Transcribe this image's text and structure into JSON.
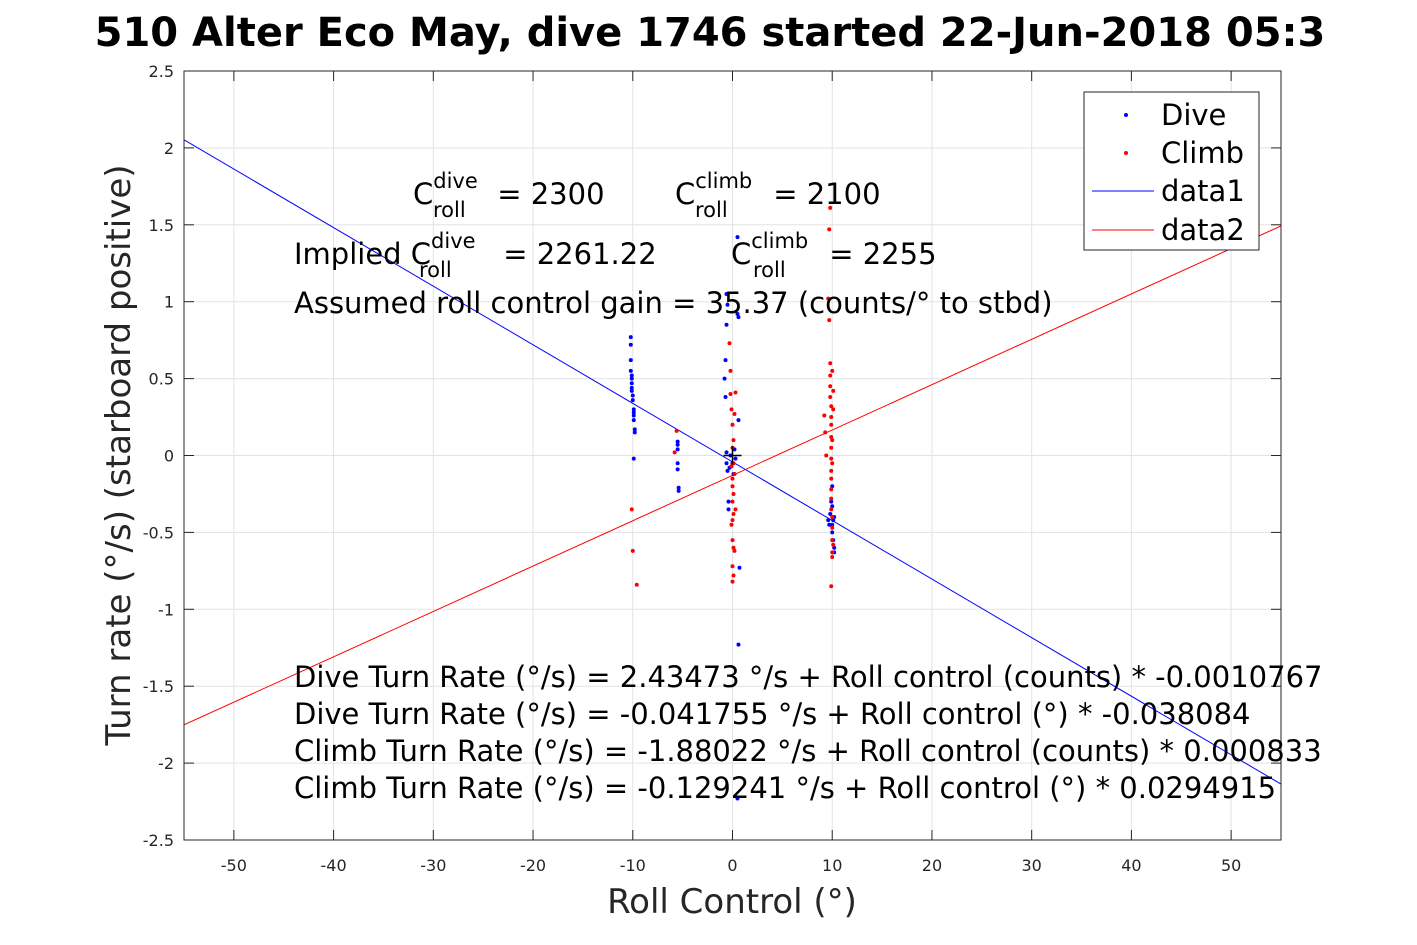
{
  "chart_data": {
    "type": "scatter",
    "title": "510 Alter Eco May, dive 1746 started 22-Jun-2018 05:3",
    "xlabel": "Roll Control (°)",
    "ylabel": "Turn rate (°/s) (starboard positive)",
    "xlim": [
      -55,
      55
    ],
    "ylim": [
      -2.5,
      2.5
    ],
    "xticks": [
      -50,
      -40,
      -30,
      -20,
      -10,
      0,
      10,
      20,
      30,
      40,
      50
    ],
    "yticks": [
      -2.5,
      -2,
      -1.5,
      -1,
      -0.5,
      0,
      0.5,
      1,
      1.5,
      2,
      2.5
    ],
    "grid": true,
    "legend_position": "top-right",
    "series": [
      {
        "name": "Dive",
        "kind": "points",
        "color": "#0000ff",
        "points": [
          [
            -10.2,
            0.77
          ],
          [
            -10.2,
            0.72
          ],
          [
            -10.2,
            0.62
          ],
          [
            -10.2,
            0.55
          ],
          [
            -10.1,
            0.52
          ],
          [
            -10.1,
            0.5
          ],
          [
            -10.1,
            0.47
          ],
          [
            -10.1,
            0.44
          ],
          [
            -10.1,
            0.42
          ],
          [
            -10.0,
            0.39
          ],
          [
            -10.0,
            0.36
          ],
          [
            -9.9,
            0.3
          ],
          [
            -9.9,
            0.28
          ],
          [
            -9.9,
            0.26
          ],
          [
            -9.9,
            0.23
          ],
          [
            -9.8,
            0.17
          ],
          [
            -9.8,
            0.15
          ],
          [
            -9.9,
            -0.02
          ],
          [
            -5.5,
            0.09
          ],
          [
            -5.5,
            0.07
          ],
          [
            -5.5,
            0.04
          ],
          [
            -5.5,
            -0.05
          ],
          [
            -5.5,
            -0.09
          ],
          [
            -5.4,
            -0.21
          ],
          [
            -5.4,
            -0.23
          ],
          [
            -0.6,
            1.05
          ],
          [
            -0.5,
            0.98
          ],
          [
            -0.6,
            0.85
          ],
          [
            -0.7,
            0.62
          ],
          [
            -0.8,
            0.5
          ],
          [
            -0.7,
            0.38
          ],
          [
            -0.6,
            0.02
          ],
          [
            -0.6,
            -0.05
          ],
          [
            -0.5,
            -0.1
          ],
          [
            -0.4,
            -0.3
          ],
          [
            -0.4,
            -0.35
          ],
          [
            -0.3,
            -0.08
          ],
          [
            -0.2,
            0.0
          ],
          [
            0.0,
            -0.05
          ],
          [
            0.1,
            -0.12
          ],
          [
            0.2,
            0.04
          ],
          [
            0.3,
            -0.02
          ],
          [
            0.5,
            0.92
          ],
          [
            0.6,
            0.9
          ],
          [
            0.5,
            1.42
          ],
          [
            0.6,
            0.23
          ],
          [
            0.7,
            -0.73
          ],
          [
            0.6,
            -1.23
          ],
          [
            0.5,
            -2.23
          ],
          [
            9.6,
            -0.42
          ],
          [
            9.7,
            -0.45
          ],
          [
            9.8,
            -0.38
          ],
          [
            9.9,
            -0.3
          ],
          [
            10.0,
            -0.2
          ],
          [
            10.0,
            -0.5
          ],
          [
            10.1,
            -0.55
          ],
          [
            10.2,
            -0.6
          ],
          [
            10.2,
            -0.4
          ],
          [
            10.1,
            -0.42
          ],
          [
            10.0,
            -0.33
          ],
          [
            10.2,
            -0.63
          ],
          [
            10.0,
            -0.45
          ]
        ]
      },
      {
        "name": "Climb",
        "kind": "points",
        "color": "#ff0000",
        "points": [
          [
            -10.1,
            -0.35
          ],
          [
            -10.0,
            -0.62
          ],
          [
            -9.6,
            -0.84
          ],
          [
            -5.8,
            0.02
          ],
          [
            -5.6,
            0.16
          ],
          [
            -0.3,
            0.73
          ],
          [
            -0.2,
            0.55
          ],
          [
            -0.2,
            0.4
          ],
          [
            -0.1,
            0.3
          ],
          [
            0.0,
            0.2
          ],
          [
            0.1,
            0.1
          ],
          [
            0.0,
            0.05
          ],
          [
            -0.1,
            -0.07
          ],
          [
            0.0,
            -0.15
          ],
          [
            0.0,
            -0.2
          ],
          [
            0.1,
            -0.25
          ],
          [
            0.0,
            -0.3
          ],
          [
            0.1,
            -0.38
          ],
          [
            0.0,
            -0.42
          ],
          [
            -0.1,
            -0.45
          ],
          [
            0.0,
            -0.55
          ],
          [
            0.1,
            -0.6
          ],
          [
            0.2,
            -0.62
          ],
          [
            0.0,
            -0.72
          ],
          [
            0.1,
            -0.78
          ],
          [
            0.0,
            -0.82
          ],
          [
            0.3,
            0.41
          ],
          [
            0.2,
            0.27
          ],
          [
            0.1,
            -0.05
          ],
          [
            0.2,
            -0.12
          ],
          [
            0.3,
            -0.35
          ],
          [
            9.2,
            0.26
          ],
          [
            9.3,
            0.15
          ],
          [
            9.4,
            0.0
          ],
          [
            9.6,
            1.02
          ],
          [
            9.7,
            0.88
          ],
          [
            9.8,
            0.6
          ],
          [
            9.8,
            0.52
          ],
          [
            9.8,
            0.45
          ],
          [
            9.8,
            0.38
          ],
          [
            9.9,
            0.32
          ],
          [
            9.9,
            0.25
          ],
          [
            9.9,
            0.2
          ],
          [
            9.9,
            0.12
          ],
          [
            9.9,
            0.05
          ],
          [
            9.9,
            -0.02
          ],
          [
            9.9,
            -0.1
          ],
          [
            9.9,
            -0.15
          ],
          [
            9.9,
            -0.22
          ],
          [
            9.9,
            -0.28
          ],
          [
            9.9,
            -0.35
          ],
          [
            10.0,
            -0.47
          ],
          [
            10.0,
            -0.55
          ],
          [
            10.0,
            -0.63
          ],
          [
            10.0,
            -0.66
          ],
          [
            9.9,
            -0.85
          ],
          [
            9.7,
            1.47
          ],
          [
            9.8,
            1.61
          ],
          [
            10.0,
            0.55
          ],
          [
            10.1,
            0.42
          ],
          [
            10.1,
            0.3
          ],
          [
            10.0,
            0.1
          ],
          [
            10.0,
            -0.05
          ],
          [
            10.0,
            -0.4
          ],
          [
            10.1,
            -0.58
          ]
        ]
      },
      {
        "name": "data1",
        "kind": "line",
        "color": "#0000ff",
        "intercept": -0.041755,
        "slope": -0.038084
      },
      {
        "name": "data2",
        "kind": "line",
        "color": "#ff0000",
        "intercept": -0.129241,
        "slope": 0.0294915
      }
    ],
    "center_marker": [
      0,
      0
    ],
    "annotations": {
      "c_roll": {
        "base": "C",
        "sub": "roll",
        "dive_sup": "dive",
        "dive_value": " = 2300",
        "climb_sup": "climb",
        "climb_value": " = 2100"
      },
      "implied": {
        "prefix": "Implied C",
        "sub": "roll",
        "dive_sup": "dive",
        "dive_value": " = 2261.22",
        "climb_base": "C",
        "climb_sup": "climb",
        "climb_value": " = 2255"
      },
      "gain": "Assumed roll control gain = 35.37 (counts/° to stbd)",
      "equations": [
        "Dive Turn Rate (°/s) = 2.43473 °/s + Roll control (counts) * -0.0010767",
        "Dive Turn Rate (°/s) = -0.041755 °/s + Roll control (°) * -0.038084",
        "Climb Turn Rate (°/s) = -1.88022 °/s + Roll control (counts) * 0.000833",
        "Climb Turn Rate (°/s) = -0.129241 °/s + Roll control (°) * 0.0294915"
      ]
    }
  }
}
